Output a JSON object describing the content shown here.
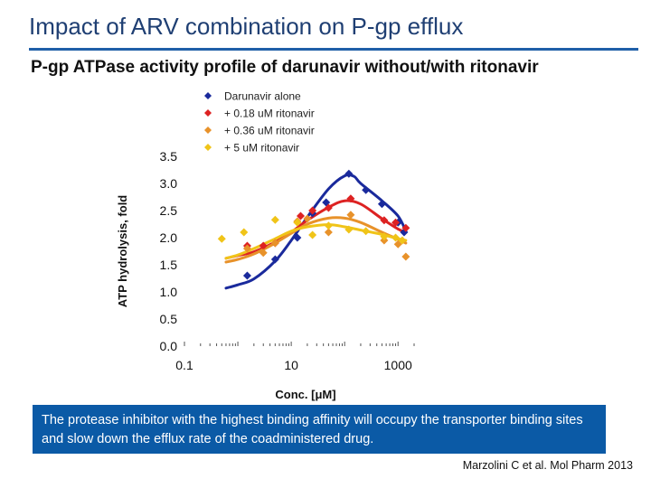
{
  "slide": {
    "title": "Impact of ARV combination on P-gp efflux",
    "subtitle": "P-gp ATPase activity profile of darunavir without/with ritonavir",
    "callout": "The protease inhibitor with the highest binding affinity will occupy the transporter binding sites and slow down the efflux rate of the coadministered drug.",
    "citation": "Marzolini C et al. Mol Pharm 2013"
  },
  "chart_data": {
    "type": "scatter",
    "title": "",
    "xlabel": "Conc. [μM]",
    "ylabel": "ATP hydrolysis, fold",
    "x_scale": "log10",
    "xlim": [
      0.1,
      2000
    ],
    "ylim": [
      0,
      3.5
    ],
    "x_ticks": [
      {
        "value": 0.1,
        "label": "0.1"
      },
      {
        "value": 10,
        "label": "10"
      },
      {
        "value": 1000,
        "label": "1000"
      }
    ],
    "y_ticks": [
      {
        "value": 0.0,
        "label": "0.0"
      },
      {
        "value": 0.5,
        "label": "0.5"
      },
      {
        "value": 1.0,
        "label": "1.0"
      },
      {
        "value": 1.5,
        "label": "1.5"
      },
      {
        "value": 2.0,
        "label": "2.0"
      },
      {
        "value": 2.5,
        "label": "2.5"
      },
      {
        "value": 3.0,
        "label": "3.0"
      },
      {
        "value": 3.5,
        "label": "3.5"
      }
    ],
    "legend_position": "top",
    "series": [
      {
        "name": "Darunavir alone",
        "marker_color": "#1a2a9c",
        "line_color": "#1a2a9c",
        "x": [
          1.5,
          5,
          13,
          25,
          45,
          120,
          250,
          500,
          1000,
          1300
        ],
        "y": [
          1.3,
          1.6,
          2.0,
          2.45,
          2.65,
          3.18,
          2.88,
          2.62,
          2.28,
          2.1
        ],
        "fit_x": [
          0.6,
          1,
          2,
          5,
          10,
          20,
          50,
          100,
          150,
          200,
          500,
          1000,
          1400
        ],
        "fit_y": [
          1.07,
          1.13,
          1.24,
          1.57,
          1.95,
          2.38,
          2.9,
          3.14,
          3.13,
          3.0,
          2.68,
          2.4,
          2.12
        ]
      },
      {
        "name": "+ 0.18 uM ritonavir",
        "marker_color": "#dd2222",
        "line_color": "#dd2222",
        "x": [
          1.5,
          3,
          5,
          15,
          25,
          50,
          130,
          550,
          900,
          1400
        ],
        "y": [
          1.85,
          1.85,
          1.9,
          2.4,
          2.5,
          2.55,
          2.72,
          2.32,
          2.28,
          2.18
        ],
        "fit_x": [
          0.6,
          1,
          2,
          5,
          10,
          20,
          50,
          100,
          200,
          500,
          1000,
          1400
        ],
        "fit_y": [
          1.62,
          1.67,
          1.74,
          1.92,
          2.1,
          2.32,
          2.56,
          2.68,
          2.62,
          2.35,
          2.16,
          2.1
        ]
      },
      {
        "name": "+ 0.36 uM ritonavir",
        "marker_color": "#e8922a",
        "line_color": "#e8922a",
        "x": [
          1.5,
          3,
          5,
          13,
          20,
          50,
          130,
          550,
          1000,
          1400
        ],
        "y": [
          1.8,
          1.72,
          1.9,
          2.3,
          2.35,
          2.1,
          2.42,
          1.95,
          1.88,
          1.65
        ],
        "fit_x": [
          0.6,
          1,
          2,
          5,
          10,
          20,
          50,
          100,
          200,
          500,
          1000,
          1400
        ],
        "fit_y": [
          1.55,
          1.6,
          1.7,
          1.9,
          2.08,
          2.25,
          2.36,
          2.36,
          2.28,
          2.1,
          1.97,
          1.9
        ]
      },
      {
        "name": "+ 5 uM ritonavir",
        "marker_color": "#f0c418",
        "line_color": "#f0c418",
        "x": [
          0.5,
          1.3,
          5,
          13,
          25,
          50,
          120,
          250,
          550,
          900,
          1200
        ],
        "y": [
          1.98,
          2.1,
          2.33,
          2.28,
          2.05,
          2.22,
          2.15,
          2.12,
          2.02,
          2.0,
          1.95
        ],
        "fit_x": [
          0.6,
          1,
          2,
          5,
          10,
          20,
          50,
          100,
          200,
          500,
          1000,
          1400
        ],
        "fit_y": [
          1.62,
          1.68,
          1.8,
          1.98,
          2.12,
          2.2,
          2.24,
          2.2,
          2.14,
          2.06,
          1.98,
          1.95
        ]
      }
    ]
  }
}
